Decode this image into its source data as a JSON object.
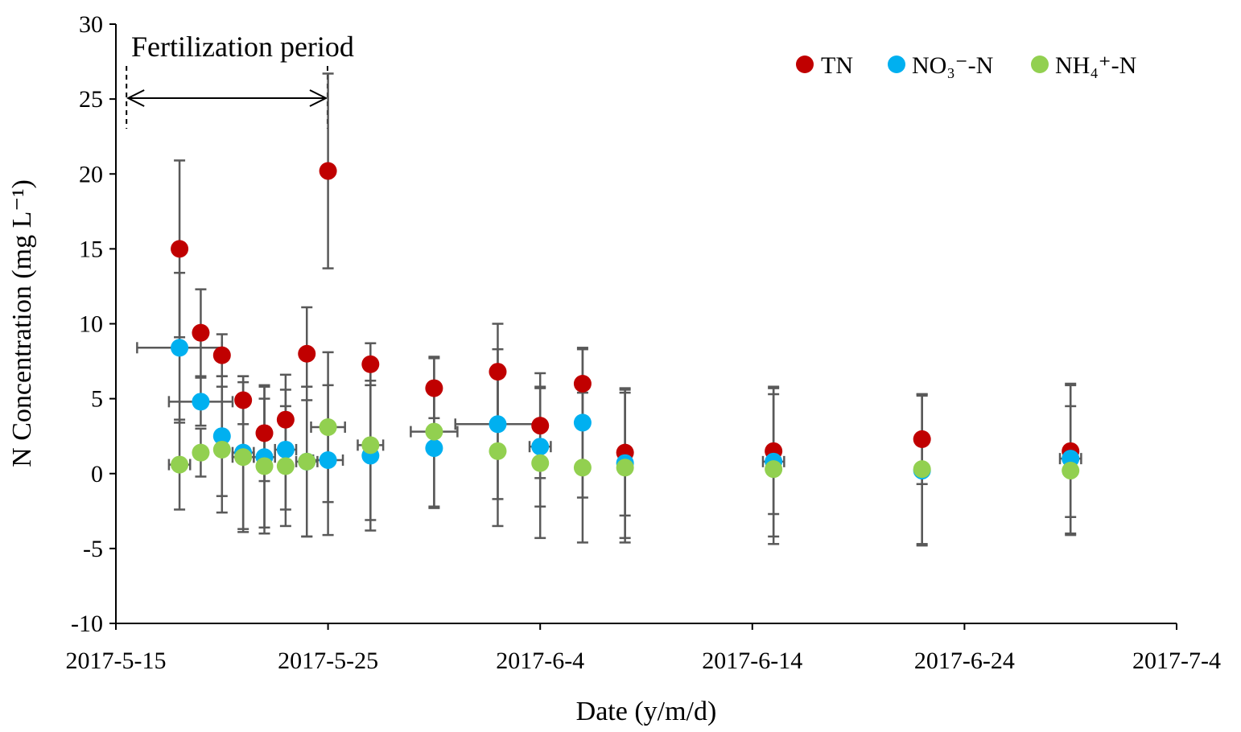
{
  "chart_data": {
    "type": "scatter",
    "title": "",
    "xlabel": "Date (y/m/d)",
    "ylabel": "N Concentration (mg L⁻¹)",
    "xlim_days": [
      0,
      50
    ],
    "ylim": [
      -10,
      30
    ],
    "y_ticks": [
      -10,
      -5,
      0,
      5,
      10,
      15,
      20,
      25,
      30
    ],
    "x_ticks": [
      {
        "day": 0,
        "label": "2017-5-15"
      },
      {
        "day": 10,
        "label": "2017-5-25"
      },
      {
        "day": 20,
        "label": "2017-6-4"
      },
      {
        "day": 30,
        "label": "2017-6-14"
      },
      {
        "day": 40,
        "label": "2017-6-24"
      },
      {
        "day": 50,
        "label": "2017-7-4"
      }
    ],
    "grid": false,
    "legend_position": "top-right",
    "annotation": {
      "text": "Fertilization period",
      "start_day": 0.5,
      "end_day": 9.9
    },
    "series": [
      {
        "name": "TN",
        "color": "#c00000",
        "points": [
          {
            "day": 3,
            "y": 15.0,
            "yerr": 5.9
          },
          {
            "day": 4,
            "y": 9.4,
            "yerr": 2.9
          },
          {
            "day": 5,
            "y": 7.9,
            "yerr": 1.4
          },
          {
            "day": 6,
            "y": 4.9,
            "yerr": 1.6
          },
          {
            "day": 7,
            "y": 2.7,
            "yerr": 3.2
          },
          {
            "day": 8,
            "y": 3.6,
            "yerr": 3.0
          },
          {
            "day": 9,
            "y": 8.0,
            "yerr": 3.1
          },
          {
            "day": 10,
            "y": 20.2,
            "yerr": 6.5
          },
          {
            "day": 12,
            "y": 7.3,
            "yerr": 1.4
          },
          {
            "day": 15,
            "y": 5.7,
            "yerr": 2.0
          },
          {
            "day": 18,
            "y": 6.8,
            "yerr": 3.2
          },
          {
            "day": 20,
            "y": 3.2,
            "yerr": 3.5
          },
          {
            "day": 22,
            "y": 6.0,
            "yerr": 2.3
          },
          {
            "day": 24,
            "y": 1.4,
            "yerr": 4.2
          },
          {
            "day": 31,
            "y": 1.5,
            "yerr": 4.2
          },
          {
            "day": 38,
            "y": 2.3,
            "yerr": 3.0
          },
          {
            "day": 45,
            "y": 1.5,
            "yerr": 4.4
          }
        ]
      },
      {
        "name": "NO₃⁻-N",
        "color": "#00b0f0",
        "points": [
          {
            "day": 3,
            "y": 8.4,
            "yerr": 5.0,
            "xerr": 2.0
          },
          {
            "day": 4,
            "y": 4.8,
            "yerr": 1.6,
            "xerr": 1.5
          },
          {
            "day": 5,
            "y": 2.5,
            "yerr": 4.0,
            "xerr": 0
          },
          {
            "day": 6,
            "y": 1.4,
            "yerr": 5.1,
            "xerr": 0.5
          },
          {
            "day": 7,
            "y": 1.1,
            "yerr": 4.7,
            "xerr": 0.5
          },
          {
            "day": 8,
            "y": 1.6,
            "yerr": 4.0,
            "xerr": 0.5
          },
          {
            "day": 9,
            "y": 0.8,
            "yerr": 5.0,
            "xerr": 0.5
          },
          {
            "day": 10,
            "y": 0.9,
            "yerr": 5.0,
            "xerr": 0.7
          },
          {
            "day": 12,
            "y": 1.2,
            "yerr": 5.0,
            "xerr": 0
          },
          {
            "day": 15,
            "y": 1.7,
            "yerr": 4.0,
            "xerr": 0
          },
          {
            "day": 18,
            "y": 3.3,
            "yerr": 5.0,
            "xerr": 2.0
          },
          {
            "day": 20,
            "y": 1.8,
            "yerr": 4.0,
            "xerr": 0.5
          },
          {
            "day": 22,
            "y": 3.4,
            "yerr": 5.0,
            "xerr": 0
          },
          {
            "day": 24,
            "y": 0.7,
            "yerr": 5.0,
            "xerr": 0
          },
          {
            "day": 31,
            "y": 0.8,
            "yerr": 5.0,
            "xerr": 0.5
          },
          {
            "day": 38,
            "y": 0.2,
            "yerr": 5.0,
            "xerr": 0
          },
          {
            "day": 45,
            "y": 1.0,
            "yerr": 5.0,
            "xerr": 0.5
          }
        ]
      },
      {
        "name": "NH₄⁺-N",
        "color": "#92d050",
        "points": [
          {
            "day": 3,
            "y": 0.6,
            "yerr": 3.0,
            "xerr": 0.5
          },
          {
            "day": 4,
            "y": 1.4,
            "yerr": 1.6,
            "xerr": 0
          },
          {
            "day": 5,
            "y": 1.6,
            "yerr": 4.2,
            "xerr": 0
          },
          {
            "day": 6,
            "y": 1.1,
            "yerr": 5.0,
            "xerr": 0.5
          },
          {
            "day": 7,
            "y": 0.5,
            "yerr": 4.5,
            "xerr": 0
          },
          {
            "day": 8,
            "y": 0.5,
            "yerr": 4.0,
            "xerr": 0
          },
          {
            "day": 9,
            "y": 0.8,
            "yerr": 5.0,
            "xerr": 0
          },
          {
            "day": 10,
            "y": 3.1,
            "yerr": 5.0,
            "xerr": 0.8
          },
          {
            "day": 12,
            "y": 1.9,
            "yerr": 5.0,
            "xerr": 0.6
          },
          {
            "day": 15,
            "y": 2.8,
            "yerr": 5.0,
            "xerr": 1.1
          },
          {
            "day": 18,
            "y": 1.5,
            "yerr": 5.0,
            "xerr": 0
          },
          {
            "day": 20,
            "y": 0.7,
            "yerr": 5.0,
            "xerr": 0
          },
          {
            "day": 22,
            "y": 0.4,
            "yerr": 5.0,
            "xerr": 0
          },
          {
            "day": 24,
            "y": 0.4,
            "yerr": 5.0,
            "xerr": 0
          },
          {
            "day": 31,
            "y": 0.3,
            "yerr": 5.0,
            "xerr": 0
          },
          {
            "day": 38,
            "y": 0.3,
            "yerr": 5.0,
            "xerr": 0
          },
          {
            "day": 45,
            "y": 0.2,
            "yerr": 4.3,
            "xerr": 0
          }
        ]
      }
    ]
  }
}
